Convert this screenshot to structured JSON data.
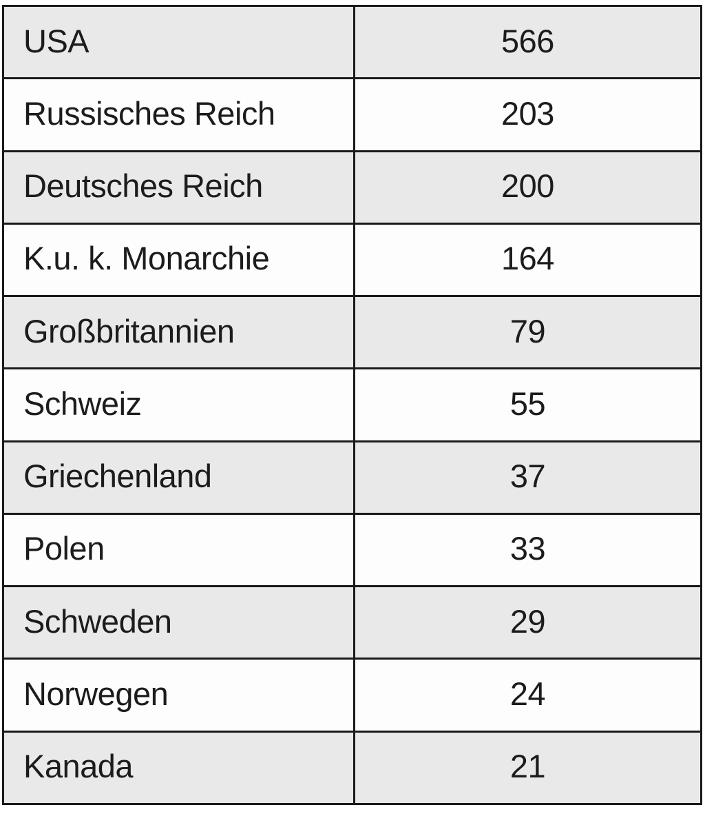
{
  "table": {
    "rows": [
      {
        "label": "USA",
        "value": "566"
      },
      {
        "label": "Russisches Reich",
        "value": "203"
      },
      {
        "label": "Deutsches Reich",
        "value": "200"
      },
      {
        "label": "K.u. k. Monarchie",
        "value": "164"
      },
      {
        "label": "Großbritannien",
        "value": "79"
      },
      {
        "label": "Schweiz",
        "value": "55"
      },
      {
        "label": "Griechenland",
        "value": "37"
      },
      {
        "label": "Polen",
        "value": "33"
      },
      {
        "label": "Schweden",
        "value": "29"
      },
      {
        "label": "Norwegen",
        "value": "24"
      },
      {
        "label": "Kanada",
        "value": "21"
      }
    ],
    "colors": {
      "row_shaded": "#e9e9e9",
      "row_plain": "#fdfdfd",
      "border": "#1a1a1a",
      "text": "#1c1c1c"
    }
  },
  "chart_data": {
    "type": "table",
    "categories": [
      "USA",
      "Russisches Reich",
      "Deutsches Reich",
      "K.u. k. Monarchie",
      "Großbritannien",
      "Schweiz",
      "Griechenland",
      "Polen",
      "Schweden",
      "Norwegen",
      "Kanada"
    ],
    "values": [
      566,
      203,
      200,
      164,
      79,
      55,
      37,
      33,
      29,
      24,
      21
    ],
    "title": "",
    "xlabel": "",
    "ylabel": "",
    "layout": {
      "columns": 2,
      "row_striping": "alternating starting shaded",
      "first_column_align": "left",
      "second_column_align": "center",
      "header_row": false
    }
  }
}
